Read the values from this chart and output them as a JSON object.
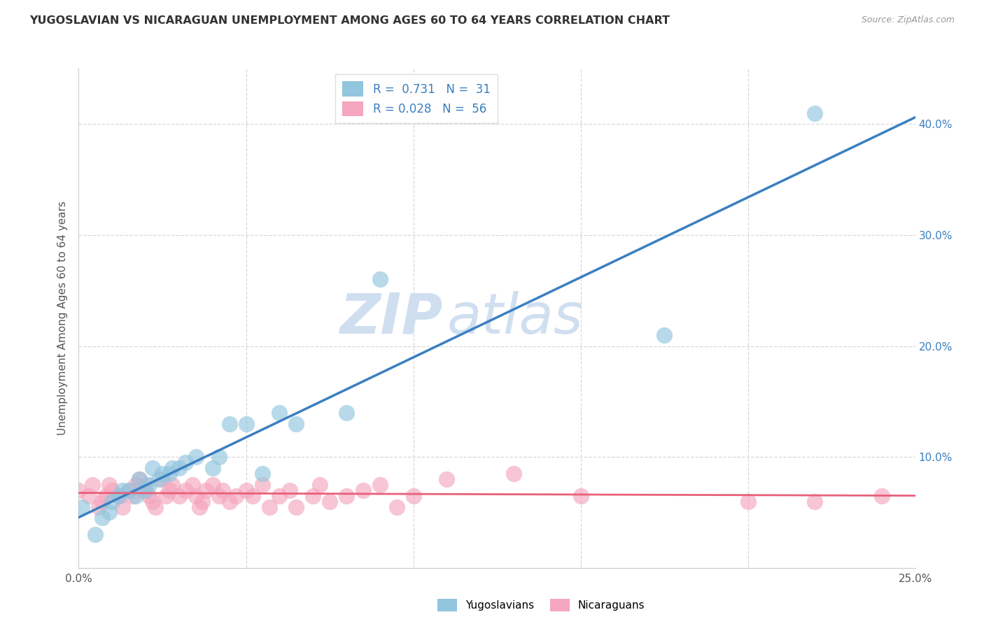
{
  "title": "YUGOSLAVIAN VS NICARAGUAN UNEMPLOYMENT AMONG AGES 60 TO 64 YEARS CORRELATION CHART",
  "source": "Source: ZipAtlas.com",
  "ylabel": "Unemployment Among Ages 60 to 64 years",
  "xlim": [
    0.0,
    0.25
  ],
  "ylim": [
    0.0,
    0.45
  ],
  "xticks": [
    0.0,
    0.05,
    0.1,
    0.15,
    0.2,
    0.25
  ],
  "yticks": [
    0.0,
    0.1,
    0.2,
    0.3,
    0.4
  ],
  "xtick_labels": [
    "0.0%",
    "",
    "",
    "",
    "",
    "25.0%"
  ],
  "ytick_right_labels": [
    "",
    "10.0%",
    "20.0%",
    "30.0%",
    "40.0%"
  ],
  "yugoslav_color": "#92c5de",
  "nicaraguan_color": "#f4a6be",
  "yugoslav_line_color": "#3a7fc1",
  "nicaraguan_line_color": "#e8607a",
  "R_yugoslav": 0.731,
  "N_yugoslav": 31,
  "R_nicaraguan": 0.028,
  "N_nicaraguan": 56,
  "legend_labels": [
    "Yugoslavians",
    "Nicaraguans"
  ],
  "background_color": "#ffffff",
  "watermark_zip": "ZIP",
  "watermark_atlas": "atlas",
  "watermark_color": "#d0dff0",
  "grid_color": "#d8d8d8",
  "yugoslav_points_x": [
    0.001,
    0.005,
    0.007,
    0.009,
    0.01,
    0.012,
    0.013,
    0.015,
    0.017,
    0.018,
    0.02,
    0.021,
    0.022,
    0.024,
    0.025,
    0.027,
    0.028,
    0.03,
    0.032,
    0.035,
    0.04,
    0.042,
    0.045,
    0.05,
    0.055,
    0.06,
    0.065,
    0.08,
    0.09,
    0.175,
    0.22
  ],
  "yugoslav_points_y": [
    0.055,
    0.03,
    0.045,
    0.05,
    0.06,
    0.065,
    0.07,
    0.07,
    0.065,
    0.08,
    0.07,
    0.075,
    0.09,
    0.08,
    0.085,
    0.085,
    0.09,
    0.09,
    0.095,
    0.1,
    0.09,
    0.1,
    0.13,
    0.13,
    0.085,
    0.14,
    0.13,
    0.14,
    0.26,
    0.21,
    0.41
  ],
  "nicaraguan_points_x": [
    0.0,
    0.003,
    0.004,
    0.006,
    0.007,
    0.008,
    0.009,
    0.01,
    0.012,
    0.013,
    0.015,
    0.016,
    0.017,
    0.018,
    0.019,
    0.02,
    0.021,
    0.022,
    0.023,
    0.025,
    0.026,
    0.027,
    0.028,
    0.03,
    0.032,
    0.034,
    0.035,
    0.036,
    0.037,
    0.038,
    0.04,
    0.042,
    0.043,
    0.045,
    0.047,
    0.05,
    0.052,
    0.055,
    0.057,
    0.06,
    0.063,
    0.065,
    0.07,
    0.072,
    0.075,
    0.08,
    0.085,
    0.09,
    0.095,
    0.1,
    0.11,
    0.13,
    0.15,
    0.2,
    0.22,
    0.24
  ],
  "nicaraguan_points_y": [
    0.07,
    0.065,
    0.075,
    0.055,
    0.06,
    0.065,
    0.075,
    0.07,
    0.065,
    0.055,
    0.07,
    0.065,
    0.075,
    0.08,
    0.07,
    0.075,
    0.065,
    0.06,
    0.055,
    0.08,
    0.065,
    0.07,
    0.075,
    0.065,
    0.07,
    0.075,
    0.065,
    0.055,
    0.06,
    0.07,
    0.075,
    0.065,
    0.07,
    0.06,
    0.065,
    0.07,
    0.065,
    0.075,
    0.055,
    0.065,
    0.07,
    0.055,
    0.065,
    0.075,
    0.06,
    0.065,
    0.07,
    0.075,
    0.055,
    0.065,
    0.08,
    0.085,
    0.065,
    0.06,
    0.06,
    0.065
  ]
}
